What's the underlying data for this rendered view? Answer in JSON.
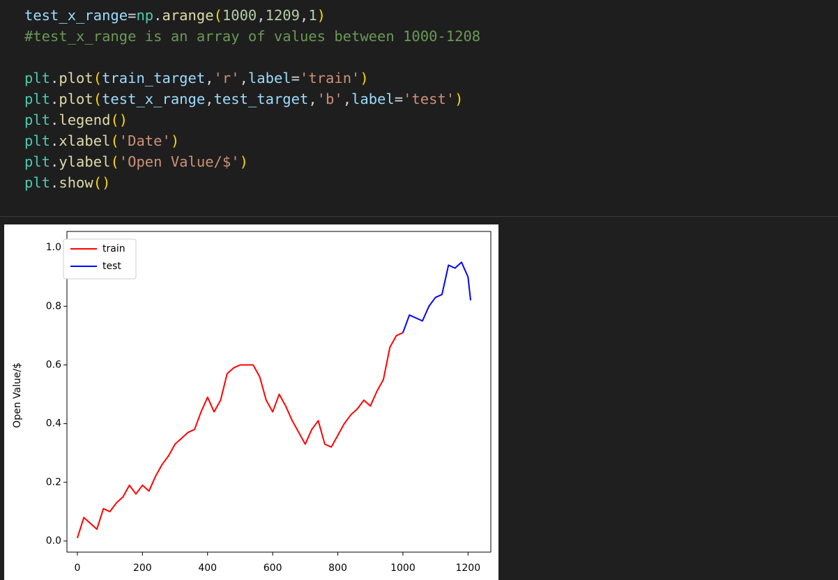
{
  "code": [
    [
      "test_x_range",
      "=",
      "np",
      ".",
      "arange",
      "(",
      "1000",
      ",",
      "1209",
      ",",
      "1",
      ")"
    ],
    [
      "#test_x_range is an array of values between 1000-1208"
    ],
    [
      "plt",
      ".",
      "plot",
      "(",
      "train_target",
      ",",
      "'r'",
      ",",
      "label",
      "=",
      "'train'",
      ")"
    ],
    [
      "plt",
      ".",
      "plot",
      "(",
      "test_x_range",
      ",",
      "test_target",
      ",",
      "'b'",
      ",",
      "label",
      "=",
      "'test'",
      ")"
    ],
    [
      "plt",
      ".",
      "legend",
      "()"
    ],
    [
      "plt",
      ".",
      "xlabel",
      "(",
      "'Date'",
      ")"
    ],
    [
      "plt",
      ".",
      "ylabel",
      "(",
      "'Open Value/$'",
      ")"
    ],
    [
      "plt",
      ".",
      "show",
      "()"
    ]
  ],
  "chart_data": {
    "type": "line",
    "ylabel": "Open Value/$",
    "legend": "upper left",
    "x": [
      0,
      20,
      40,
      60,
      80,
      100,
      120,
      140,
      160,
      180,
      200,
      220,
      240,
      260,
      280,
      300,
      320,
      340,
      360,
      380,
      400,
      420,
      440,
      460,
      480,
      500,
      520,
      540,
      560,
      580,
      600,
      620,
      640,
      660,
      680,
      700,
      720,
      740,
      760,
      780,
      800,
      820,
      840,
      860,
      880,
      900,
      920,
      940,
      960,
      980,
      1000,
      1020,
      1040,
      1060,
      1080,
      1100,
      1120,
      1140,
      1160,
      1180,
      1200,
      1208
    ],
    "series": [
      {
        "name": "train",
        "color": "#ff0000",
        "values": [
          0.01,
          0.08,
          0.06,
          0.04,
          0.11,
          0.1,
          0.13,
          0.15,
          0.19,
          0.16,
          0.19,
          0.17,
          0.22,
          0.26,
          0.29,
          0.33,
          0.35,
          0.37,
          0.38,
          0.44,
          0.49,
          0.44,
          0.48,
          0.57,
          0.59,
          0.6,
          0.6,
          0.6,
          0.56,
          0.48,
          0.44,
          0.5,
          0.46,
          0.41,
          0.37,
          0.33,
          0.38,
          0.41,
          0.33,
          0.32,
          0.36,
          0.4,
          0.43,
          0.45,
          0.48,
          0.46,
          0.51,
          0.55,
          0.66,
          0.7,
          0.71,
          null,
          null,
          null,
          null,
          null,
          null,
          null,
          null,
          null,
          null,
          null
        ]
      },
      {
        "name": "test",
        "color": "#0000ff",
        "values": [
          null,
          null,
          null,
          null,
          null,
          null,
          null,
          null,
          null,
          null,
          null,
          null,
          null,
          null,
          null,
          null,
          null,
          null,
          null,
          null,
          null,
          null,
          null,
          null,
          null,
          null,
          null,
          null,
          null,
          null,
          null,
          null,
          null,
          null,
          null,
          null,
          null,
          null,
          null,
          null,
          null,
          null,
          null,
          null,
          null,
          null,
          null,
          null,
          null,
          null,
          0.71,
          0.77,
          0.76,
          0.75,
          0.8,
          0.83,
          0.84,
          0.94,
          0.93,
          0.95,
          0.9,
          0.82
        ]
      }
    ],
    "xlim": [
      -32,
      1270
    ],
    "ylim": [
      -0.038,
      1.055
    ],
    "xticks": [
      0,
      200,
      400,
      600,
      800,
      1000,
      1200
    ],
    "yticks": [
      {
        "value": 0,
        "label": "0.0"
      },
      0.2,
      0.4,
      0.6,
      0.8,
      {
        "value": 1,
        "label": "1.0"
      }
    ]
  }
}
